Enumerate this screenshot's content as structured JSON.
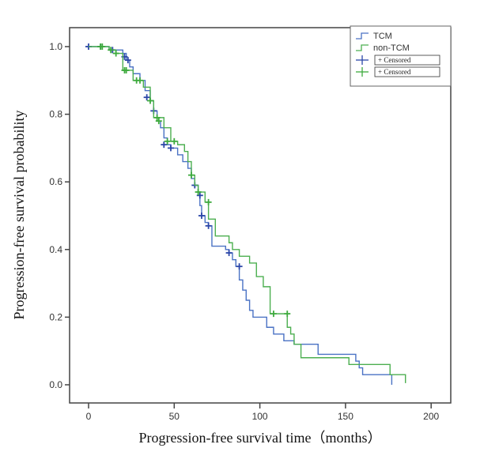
{
  "chart_data": {
    "type": "line",
    "subtype": "kaplan-meier-step",
    "title": "",
    "xlabel": "Progression-free survival time（months）",
    "ylabel": "Progression-free survival probability",
    "xlim": [
      -7,
      210
    ],
    "ylim": [
      -0.055,
      1.055
    ],
    "xticks": [
      0,
      50,
      100,
      150,
      200
    ],
    "xtick_labels": [
      "0",
      "50",
      "100",
      "150",
      "200"
    ],
    "yticks": [
      0.0,
      0.2,
      0.4,
      0.6,
      0.8,
      1.0
    ],
    "ytick_labels": [
      "0.0",
      "0.2",
      "0.4",
      "0.6",
      "0.8",
      "1.0"
    ],
    "grid": false,
    "legend": {
      "position": "top-right",
      "entries": [
        {
          "label": "TCM",
          "kind": "step",
          "color": "#4a72c4"
        },
        {
          "label": "non-TCM",
          "kind": "step",
          "color": "#4caf50"
        },
        {
          "label": "+ Censored",
          "kind": "censor",
          "color": "#2b46a8"
        },
        {
          "label": "+ Censored",
          "kind": "censor",
          "color": "#3daa3d"
        }
      ]
    },
    "series": [
      {
        "name": "TCM",
        "color": "#4a72c4",
        "censor_color": "#2b46a8",
        "steps": [
          [
            0,
            1.0
          ],
          [
            12,
            0.99
          ],
          [
            20,
            0.98
          ],
          [
            22,
            0.96
          ],
          [
            24,
            0.94
          ],
          [
            26,
            0.92
          ],
          [
            30,
            0.9
          ],
          [
            33,
            0.87
          ],
          [
            36,
            0.84
          ],
          [
            38,
            0.81
          ],
          [
            40,
            0.78
          ],
          [
            42,
            0.76
          ],
          [
            44,
            0.73
          ],
          [
            46,
            0.71
          ],
          [
            48,
            0.7
          ],
          [
            52,
            0.68
          ],
          [
            55,
            0.66
          ],
          [
            58,
            0.64
          ],
          [
            60,
            0.61
          ],
          [
            62,
            0.59
          ],
          [
            64,
            0.56
          ],
          [
            65,
            0.53
          ],
          [
            66,
            0.5
          ],
          [
            68,
            0.48
          ],
          [
            70,
            0.47
          ],
          [
            72,
            0.41
          ],
          [
            80,
            0.4
          ],
          [
            82,
            0.39
          ],
          [
            84,
            0.37
          ],
          [
            86,
            0.35
          ],
          [
            88,
            0.31
          ],
          [
            90,
            0.28
          ],
          [
            92,
            0.25
          ],
          [
            94,
            0.22
          ],
          [
            96,
            0.2
          ],
          [
            104,
            0.17
          ],
          [
            108,
            0.15
          ],
          [
            114,
            0.13
          ],
          [
            120,
            0.12
          ],
          [
            134,
            0.09
          ],
          [
            156,
            0.07
          ],
          [
            158,
            0.05
          ],
          [
            160,
            0.03
          ],
          [
            177,
            0.015
          ]
        ],
        "end_time": 177,
        "end_drop_to": 0.0,
        "censored": [
          [
            0,
            1.0
          ],
          [
            7,
            1.0
          ],
          [
            14,
            0.99
          ],
          [
            21,
            0.97
          ],
          [
            23,
            0.96
          ],
          [
            34,
            0.85
          ],
          [
            38,
            0.81
          ],
          [
            44,
            0.71
          ],
          [
            48,
            0.7
          ],
          [
            62,
            0.59
          ],
          [
            65,
            0.56
          ],
          [
            66,
            0.5
          ],
          [
            70,
            0.47
          ],
          [
            82,
            0.39
          ],
          [
            88,
            0.35
          ]
        ]
      },
      {
        "name": "non-TCM",
        "color": "#4caf50",
        "censor_color": "#3daa3d",
        "steps": [
          [
            0,
            1.0
          ],
          [
            12,
            0.99
          ],
          [
            16,
            0.98
          ],
          [
            20,
            0.93
          ],
          [
            26,
            0.9
          ],
          [
            32,
            0.88
          ],
          [
            36,
            0.84
          ],
          [
            38,
            0.79
          ],
          [
            44,
            0.76
          ],
          [
            48,
            0.72
          ],
          [
            52,
            0.71
          ],
          [
            56,
            0.69
          ],
          [
            58,
            0.66
          ],
          [
            60,
            0.62
          ],
          [
            62,
            0.59
          ],
          [
            64,
            0.57
          ],
          [
            68,
            0.54
          ],
          [
            70,
            0.49
          ],
          [
            74,
            0.44
          ],
          [
            82,
            0.42
          ],
          [
            84,
            0.4
          ],
          [
            88,
            0.38
          ],
          [
            94,
            0.36
          ],
          [
            98,
            0.32
          ],
          [
            102,
            0.29
          ],
          [
            106,
            0.21
          ],
          [
            116,
            0.17
          ],
          [
            118,
            0.15
          ],
          [
            120,
            0.12
          ],
          [
            124,
            0.08
          ],
          [
            152,
            0.06
          ],
          [
            176,
            0.03
          ],
          [
            185,
            0.03
          ]
        ],
        "end_time": 185,
        "end_drop_to": 0.005,
        "censored": [
          [
            7,
            1.0
          ],
          [
            8,
            1.0
          ],
          [
            13,
            0.99
          ],
          [
            16,
            0.98
          ],
          [
            21,
            0.93
          ],
          [
            22,
            0.93
          ],
          [
            28,
            0.9
          ],
          [
            30,
            0.9
          ],
          [
            36,
            0.84
          ],
          [
            40,
            0.79
          ],
          [
            41,
            0.78
          ],
          [
            46,
            0.72
          ],
          [
            50,
            0.72
          ],
          [
            60,
            0.62
          ],
          [
            64,
            0.57
          ],
          [
            70,
            0.54
          ],
          [
            108,
            0.21
          ],
          [
            116,
            0.21
          ]
        ]
      }
    ]
  }
}
